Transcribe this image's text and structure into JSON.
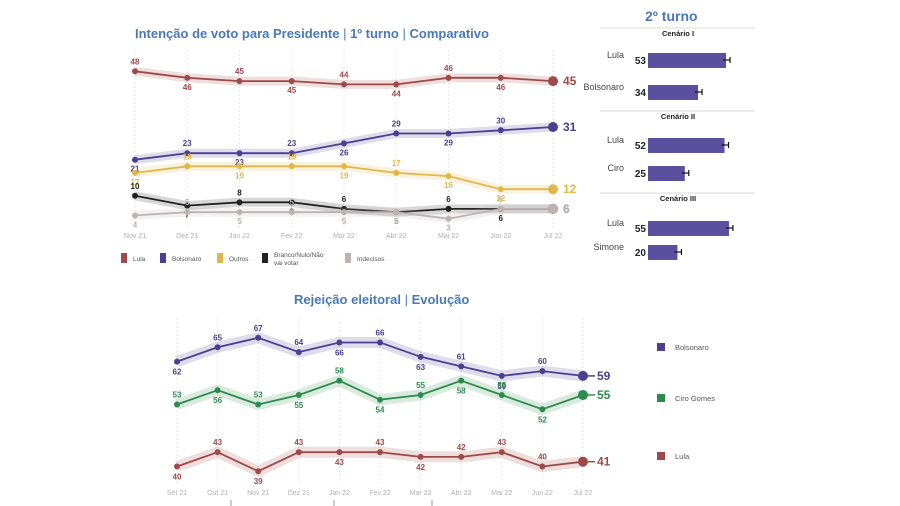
{
  "chart_data": [
    {
      "type": "line",
      "title": "Intenção de voto para Presidente",
      "title_parts": [
        "Intenção de voto para Presidente",
        "1º turno",
        "Comparativo"
      ],
      "categories": [
        "Nov 21",
        "Dez 21",
        "Jan 22",
        "Fev 22",
        "Mar 22",
        "Abr 22",
        "Mai 22",
        "Jun 22",
        "Jul 22"
      ],
      "series": [
        {
          "name": "Lula",
          "color": "#9e4a4a",
          "values": [
            48,
            46,
            45,
            45,
            44,
            44,
            46,
            46,
            45
          ]
        },
        {
          "name": "Bolsonaro",
          "color": "#4b3f8f",
          "values": [
            21,
            23,
            23,
            23,
            26,
            29,
            29,
            30,
            31
          ]
        },
        {
          "name": "Outros",
          "color": "#e0b84a",
          "values": [
            17,
            19,
            19,
            19,
            19,
            17,
            16,
            12,
            12
          ]
        },
        {
          "name": "Branco/Nulo/Não vai votar",
          "color": "#222222",
          "values": [
            10,
            7,
            8,
            8,
            6,
            5,
            6,
            6,
            6
          ]
        },
        {
          "name": "Indecisos",
          "color": "#bdb3b3",
          "values": [
            4,
            5,
            5,
            5,
            5,
            5,
            3,
            6,
            6
          ]
        }
      ],
      "legend_position": "bottom"
    },
    {
      "type": "bar",
      "title": "2º turno",
      "scenarios": [
        {
          "label": "Cenário I",
          "categories": [
            "Lula",
            "Bolsonaro"
          ],
          "values": [
            53,
            34
          ]
        },
        {
          "label": "Cenário II",
          "categories": [
            "Lula",
            "Ciro"
          ],
          "values": [
            52,
            25
          ]
        },
        {
          "label": "Cenário III",
          "categories": [
            "Lula",
            "Simone"
          ],
          "values": [
            55,
            20
          ]
        }
      ],
      "bar_color": "#5b4fa0"
    },
    {
      "type": "line",
      "title": "Rejeição eleitoral",
      "title_parts": [
        "Rejeição eleitoral",
        "Evolução"
      ],
      "categories": [
        "Set 21",
        "Out 21",
        "Nov 21",
        "Dez 21",
        "Jan 22",
        "Fev 22",
        "Mar 22",
        "Abr 22",
        "Mai 22",
        "Jun 22",
        "Jul 22"
      ],
      "series": [
        {
          "name": "Bolsonaro",
          "color": "#4b3f8f",
          "values": [
            62,
            65,
            67,
            64,
            66,
            66,
            63,
            61,
            59,
            60,
            59
          ]
        },
        {
          "name": "Ciro Gomes",
          "color": "#2e8b4e",
          "values": [
            53,
            56,
            53,
            55,
            58,
            54,
            55,
            58,
            55,
            52,
            55
          ]
        },
        {
          "name": "Lula",
          "color": "#9e4a4a",
          "values": [
            40,
            43,
            39,
            43,
            43,
            43,
            42,
            42,
            43,
            40,
            41
          ]
        }
      ],
      "legend_position": "right"
    }
  ]
}
